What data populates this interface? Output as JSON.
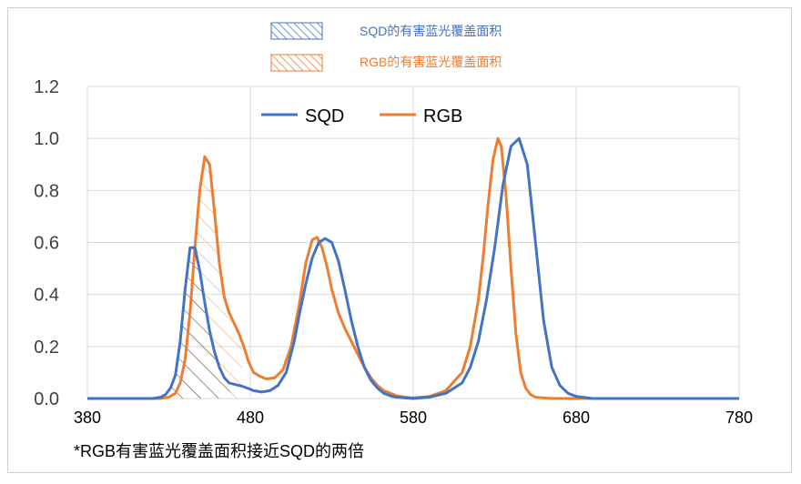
{
  "chart_data": {
    "type": "line",
    "xlim": [
      380,
      780
    ],
    "ylim": [
      0,
      1.2
    ],
    "xticks": [
      "380",
      "480",
      "580",
      "680",
      "780"
    ],
    "yticks": [
      "0.0",
      "0.2",
      "0.4",
      "0.6",
      "0.8",
      "1.0",
      "1.2"
    ],
    "grid": true,
    "legend": {
      "placement": "top-center",
      "hatch_top": "SQD的有害蓝光覆盖面积",
      "hatch_bottom": "RGB的有害蓝光覆盖面积",
      "hatch_top_color": "#4472c4",
      "hatch_bottom_color": "#ed7d31"
    },
    "series": [
      {
        "name": "SQD",
        "color": "#4472c4",
        "x": [
          380,
          420,
          425,
          428,
          431,
          434,
          437,
          440,
          443,
          446,
          449,
          452,
          455,
          458,
          461,
          464,
          467,
          470,
          473,
          476,
          479,
          482,
          487,
          492,
          497,
          502,
          507,
          510,
          514,
          518,
          522,
          526,
          530,
          534,
          538,
          542,
          546,
          550,
          554,
          558,
          562,
          566,
          570,
          575,
          580,
          590,
          600,
          610,
          615,
          620,
          625,
          630,
          635,
          640,
          645,
          650,
          655,
          660,
          665,
          670,
          675,
          680,
          690,
          700,
          780
        ],
        "y": [
          0,
          0,
          0.005,
          0.015,
          0.04,
          0.09,
          0.22,
          0.42,
          0.58,
          0.58,
          0.49,
          0.37,
          0.26,
          0.18,
          0.12,
          0.08,
          0.06,
          0.055,
          0.05,
          0.045,
          0.038,
          0.03,
          0.025,
          0.03,
          0.05,
          0.1,
          0.22,
          0.32,
          0.44,
          0.54,
          0.6,
          0.615,
          0.6,
          0.53,
          0.42,
          0.3,
          0.2,
          0.12,
          0.07,
          0.04,
          0.02,
          0.01,
          0.005,
          0.002,
          0,
          0.005,
          0.02,
          0.06,
          0.12,
          0.22,
          0.38,
          0.58,
          0.82,
          0.97,
          1.0,
          0.9,
          0.6,
          0.3,
          0.12,
          0.05,
          0.02,
          0.008,
          0,
          0,
          0
        ]
      },
      {
        "name": "RGB",
        "color": "#ed7d31",
        "x": [
          380,
          425,
          430,
          434,
          437,
          440,
          443,
          446,
          449,
          452,
          455,
          458,
          461,
          464,
          467,
          470,
          473,
          476,
          479,
          482,
          486,
          490,
          495,
          500,
          505,
          510,
          514,
          518,
          521,
          524,
          527,
          530,
          534,
          538,
          542,
          546,
          550,
          554,
          558,
          562,
          566,
          570,
          575,
          580,
          590,
          600,
          610,
          615,
          620,
          623,
          626,
          629,
          632,
          634,
          637,
          640,
          643,
          646,
          649,
          652,
          655,
          660,
          665,
          670,
          780
        ],
        "y": [
          0,
          0,
          0.005,
          0.02,
          0.06,
          0.15,
          0.33,
          0.58,
          0.8,
          0.93,
          0.9,
          0.72,
          0.52,
          0.39,
          0.33,
          0.29,
          0.25,
          0.2,
          0.14,
          0.1,
          0.085,
          0.075,
          0.08,
          0.11,
          0.2,
          0.36,
          0.52,
          0.61,
          0.62,
          0.58,
          0.51,
          0.42,
          0.33,
          0.27,
          0.22,
          0.17,
          0.12,
          0.08,
          0.05,
          0.03,
          0.02,
          0.01,
          0.005,
          0.002,
          0.008,
          0.03,
          0.1,
          0.2,
          0.38,
          0.55,
          0.75,
          0.92,
          1.0,
          0.97,
          0.78,
          0.5,
          0.25,
          0.1,
          0.04,
          0.015,
          0.005,
          0.002,
          0,
          0,
          0
        ]
      }
    ],
    "note": "*RGB有害蓝光覆盖面积接近SQD的两倍"
  }
}
